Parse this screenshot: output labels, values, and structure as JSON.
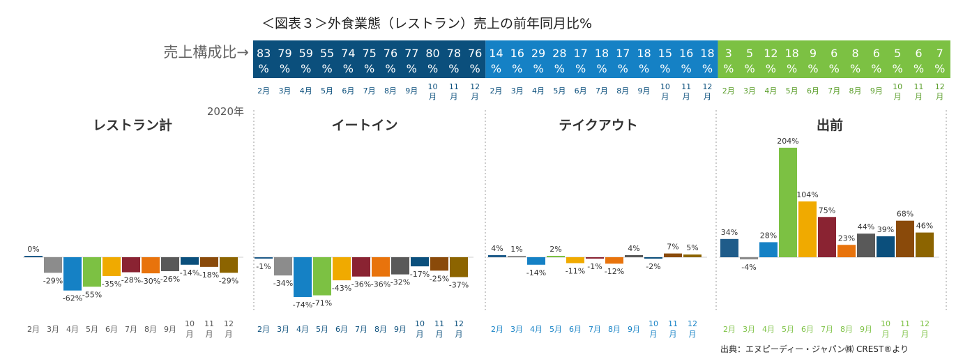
{
  "title": "＜図表３＞外食業態（レストラン）売上の前年同月比%",
  "ratio_label": "売上構成比→",
  "year_label": "2020年",
  "source": "出典：エヌピーディー・ジャパン㈱ CREST®より",
  "colors": {
    "eatin_band": "#0b4f7c",
    "takeout_band": "#1581c5",
    "delivery_band": "#7cc143",
    "months": [
      "#1f5c8a",
      "#8c8c8c",
      "#1581c5",
      "#7cc143",
      "#f0aa00",
      "#8a2332",
      "#e8730c",
      "#595959",
      "#0b4f7c",
      "#8a4a0a",
      "#8c6400"
    ]
  },
  "chart_data": {
    "type": "bar",
    "categories": [
      "2月",
      "3月",
      "4月",
      "5月",
      "6月",
      "7月",
      "8月",
      "9月",
      "10月",
      "11月",
      "12月"
    ],
    "composition": [
      {
        "name": "イートイン",
        "values": [
          "83",
          "79",
          "59",
          "55",
          "74",
          "75",
          "76",
          "77",
          "80",
          "78",
          "76"
        ]
      },
      {
        "name": "テイクアウト",
        "values": [
          "14",
          "16",
          "29",
          "28",
          "17",
          "18",
          "17",
          "18",
          "15",
          "16",
          "18"
        ]
      },
      {
        "name": "出前",
        "values": [
          "3",
          "5",
          "12",
          "18",
          "9",
          "6",
          "8",
          "6",
          "5",
          "6",
          "7"
        ]
      }
    ],
    "panels": [
      {
        "title": "レストラン計",
        "values": [
          0,
          -29,
          -62,
          -55,
          -35,
          -28,
          -30,
          -26,
          -14,
          -18,
          -29
        ],
        "labels": [
          "0%",
          "-29%",
          "-62%",
          "-55%",
          "-35%",
          "-28%",
          "-30%",
          "-26%",
          "-14%",
          "-18%",
          "-29%"
        ]
      },
      {
        "title": "イートイン",
        "values": [
          -1,
          -34,
          -74,
          -71,
          -43,
          -36,
          -36,
          -32,
          -17,
          -25,
          -37
        ],
        "labels": [
          "-1%",
          "-34%",
          "-74%",
          "-71%",
          "-43%",
          "-36%",
          "-36%",
          "-32%",
          "-17%",
          "-25%",
          "-37%"
        ]
      },
      {
        "title": "テイクアウト",
        "values": [
          4,
          1,
          -14,
          2,
          -11,
          -1,
          -12,
          4,
          -2,
          7,
          5
        ],
        "labels": [
          "4%",
          "1%",
          "-14%",
          "2%",
          "-11%",
          "-1%",
          "-12%",
          "4%",
          "-2%",
          "7%",
          "5%"
        ]
      },
      {
        "title": "出前",
        "values": [
          34,
          -4,
          28,
          204,
          104,
          75,
          23,
          44,
          39,
          68,
          46
        ],
        "labels": [
          "34%",
          "-4%",
          "28%",
          "204%",
          "104%",
          "75%",
          "23%",
          "44%",
          "39%",
          "68%",
          "46%"
        ]
      }
    ]
  }
}
